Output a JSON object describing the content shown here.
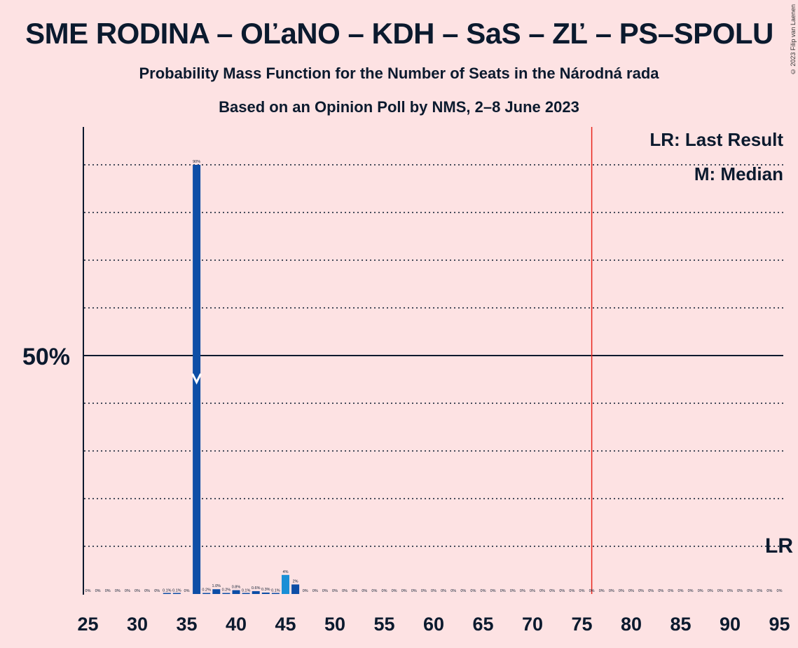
{
  "title": "SME RODINA – OĽaNO – KDH – SaS – ZĽ – PS–SPOLU",
  "subtitle": "Probability Mass Function for the Number of Seats in the Národná rada",
  "subtitle2": "Based on an Opinion Poll by NMS, 2–8 June 2023",
  "copyright": "© 2023 Filip van Laenen",
  "legend": {
    "lr": "LR: Last Result",
    "m": "M: Median"
  },
  "colors": {
    "bar": "#0d4ea6",
    "bar_light": "#1a8fd6",
    "lr_line": "#e8251c",
    "background": "#fde2e3",
    "text": "#0b1a2e"
  },
  "chart_data": {
    "type": "bar",
    "x": [
      25,
      26,
      27,
      28,
      29,
      30,
      31,
      32,
      33,
      34,
      35,
      36,
      37,
      38,
      39,
      40,
      41,
      42,
      43,
      44,
      45,
      46,
      47,
      48,
      49,
      50,
      51,
      52,
      53,
      54,
      55,
      56,
      57,
      58,
      59,
      60,
      61,
      62,
      63,
      64,
      65,
      66,
      67,
      68,
      69,
      70,
      71,
      72,
      73,
      74,
      75,
      76,
      77,
      78,
      79,
      80,
      81,
      82,
      83,
      84,
      85,
      86,
      87,
      88,
      89,
      90,
      91,
      92,
      93,
      94,
      95
    ],
    "values": [
      0,
      0,
      0,
      0,
      0,
      0,
      0,
      0,
      0.1,
      0.1,
      0,
      90,
      0.2,
      1.0,
      0.2,
      0.8,
      0.1,
      0.6,
      0.3,
      0.1,
      4,
      2,
      0,
      0,
      0,
      0,
      0,
      0,
      0,
      0,
      0,
      0,
      0,
      0,
      0,
      0,
      0,
      0,
      0,
      0,
      0,
      0,
      0,
      0,
      0,
      0,
      0,
      0,
      0,
      0,
      0,
      0,
      0,
      0,
      0,
      0,
      0,
      0,
      0,
      0,
      0,
      0,
      0,
      0,
      0,
      0,
      0,
      0,
      0,
      0,
      0
    ],
    "labels": [
      "0%",
      "0%",
      "0%",
      "0%",
      "0%",
      "0%",
      "0%",
      "0%",
      "0.1%",
      "0.1%",
      "0%",
      "90%",
      "0.2%",
      "1.0%",
      "0.2%",
      "0.8%",
      "0.1%",
      "0.6%",
      "0.3%",
      "0.1%",
      "4%",
      "2%",
      "0%",
      "0%",
      "0%",
      "0%",
      "0%",
      "0%",
      "0%",
      "0%",
      "0%",
      "0%",
      "0%",
      "0%",
      "0%",
      "0%",
      "0%",
      "0%",
      "0%",
      "0%",
      "0%",
      "0%",
      "0%",
      "0%",
      "0%",
      "0%",
      "0%",
      "0%",
      "0%",
      "0%",
      "0%",
      "0%",
      "0%",
      "0%",
      "0%",
      "0%",
      "0%",
      "0%",
      "0%",
      "0%",
      "0%",
      "0%",
      "0%",
      "0%",
      "0%",
      "0%",
      "0%",
      "0%",
      "0%",
      "0%",
      "0%"
    ],
    "xlim": [
      25,
      95
    ],
    "ylim": [
      0,
      98
    ],
    "xticks": [
      25,
      30,
      35,
      40,
      45,
      50,
      55,
      60,
      65,
      70,
      75,
      80,
      85,
      90,
      95
    ],
    "y_major_label": "50%",
    "y_major": 50,
    "y_gridlines": [
      10,
      20,
      30,
      40,
      60,
      70,
      80,
      90
    ],
    "median": 36,
    "median_label": "M",
    "last_result": 76,
    "last_result_label": "LR",
    "highlighted": [
      45
    ]
  }
}
